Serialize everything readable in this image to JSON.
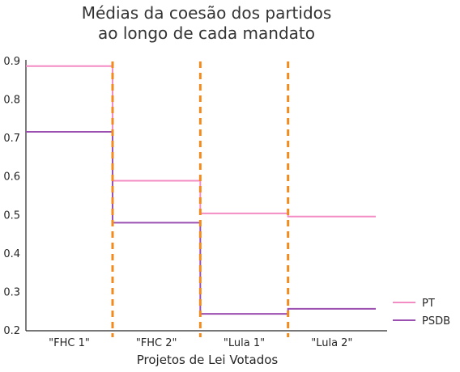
{
  "chart_data": {
    "type": "line",
    "title_lines": [
      "Médias da coesão dos partidos",
      "ao longo de cada mandato"
    ],
    "xlabel": "Projetos de Lei Votados",
    "ylabel": "",
    "categories": [
      "\"FHC 1\"",
      "\"FHC 2\"",
      "\"Lula 1\"",
      "\"Lula 2\""
    ],
    "ylim": [
      0.2,
      0.9
    ],
    "yticks": [
      "0.2",
      "0.3",
      "0.4",
      "0.5",
      "0.6",
      "0.7",
      "0.8",
      "0.9"
    ],
    "grid": false,
    "step": true,
    "legend_position": "bottom-right",
    "series": [
      {
        "name": "PT",
        "values": [
          0.888,
          0.59,
          0.505,
          0.497
        ],
        "color": "#f48cc4"
      },
      {
        "name": "PSDB",
        "values": [
          0.717,
          0.481,
          0.244,
          0.257
        ],
        "color": "#9b4fb0"
      }
    ],
    "dividers": {
      "color": "#f28a1e",
      "style": "dashed"
    }
  }
}
